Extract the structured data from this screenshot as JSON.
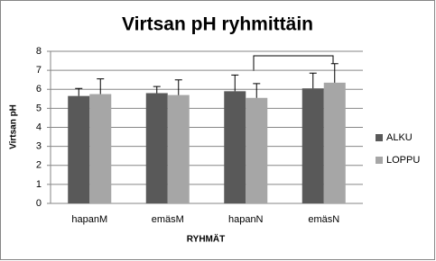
{
  "chart_data": {
    "type": "bar",
    "title": "Virtsan pH ryhmittäin",
    "y_label": "Virtsan pH",
    "x_label": "RYHMÄT",
    "categories": [
      "hapanM",
      "emäsM",
      "hapanN",
      "emäsN"
    ],
    "series": [
      {
        "name": "ALKU",
        "color": "#595959",
        "values": [
          5.65,
          5.8,
          5.9,
          6.05
        ],
        "errors": [
          0.4,
          0.35,
          0.85,
          0.8
        ]
      },
      {
        "name": "LOPPU",
        "color": "#a6a6a6",
        "values": [
          5.75,
          5.7,
          5.55,
          6.35
        ],
        "errors": [
          0.8,
          0.8,
          0.75,
          1.0
        ]
      }
    ],
    "ylim": [
      0,
      8
    ],
    "yticks": [
      0,
      1,
      2,
      3,
      4,
      5,
      6,
      7,
      8
    ],
    "grid": true,
    "legend": "right"
  }
}
